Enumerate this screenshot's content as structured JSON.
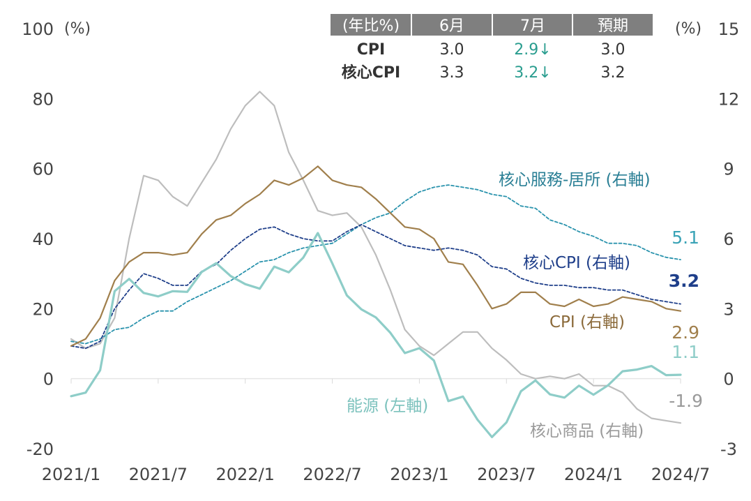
{
  "chart_data": {
    "type": "line",
    "left_axis": {
      "unit": "(%)",
      "range": [
        -20,
        100
      ],
      "ticks": [
        "100",
        "80",
        "60",
        "40",
        "20",
        "0",
        "-20"
      ]
    },
    "right_axis": {
      "unit": "(%)",
      "range": [
        -3,
        15
      ],
      "ticks": [
        "15",
        "12",
        "9",
        "6",
        "3",
        "0",
        "-3"
      ]
    },
    "x_ticks": [
      "2021/1",
      "2021/7",
      "2022/1",
      "2022/7",
      "2023/1",
      "2023/7",
      "2024/1",
      "2024/7"
    ],
    "months": [
      "2021/1",
      "2021/2",
      "2021/3",
      "2021/4",
      "2021/5",
      "2021/6",
      "2021/7",
      "2021/8",
      "2021/9",
      "2021/10",
      "2021/11",
      "2021/12",
      "2022/1",
      "2022/2",
      "2022/3",
      "2022/4",
      "2022/5",
      "2022/6",
      "2022/7",
      "2022/8",
      "2022/9",
      "2022/10",
      "2022/11",
      "2022/12",
      "2023/1",
      "2023/2",
      "2023/3",
      "2023/4",
      "2023/5",
      "2023/6",
      "2023/7",
      "2023/8",
      "2023/9",
      "2023/10",
      "2023/11",
      "2023/12",
      "2024/1",
      "2024/2",
      "2024/3",
      "2024/4",
      "2024/5",
      "2024/6",
      "2024/7"
    ],
    "series": [
      {
        "name": "核心商品 (右軸)",
        "axis": "right",
        "color": "#bdbdbd",
        "style": "solid",
        "values": [
          1.7,
          1.3,
          1.5,
          2.6,
          6.0,
          8.7,
          8.5,
          7.8,
          7.4,
          8.4,
          9.4,
          10.7,
          11.7,
          12.3,
          11.7,
          9.7,
          8.5,
          7.2,
          7.0,
          7.1,
          6.5,
          5.3,
          3.8,
          2.1,
          1.4,
          1.0,
          1.5,
          2.0,
          2.0,
          1.3,
          0.8,
          0.2,
          0.0,
          0.1,
          0.0,
          0.2,
          -0.3,
          -0.3,
          -0.6,
          -1.3,
          -1.7,
          -1.8,
          -1.9
        ]
      },
      {
        "name": "核心服務-居所 (右軸)",
        "axis": "right",
        "color": "#2a93ad",
        "style": "dashed",
        "values": [
          1.6,
          1.5,
          1.7,
          2.1,
          2.2,
          2.6,
          2.9,
          2.9,
          3.3,
          3.6,
          3.9,
          4.2,
          4.6,
          5.0,
          5.1,
          5.4,
          5.6,
          5.7,
          5.8,
          6.2,
          6.6,
          6.9,
          7.1,
          7.6,
          8.0,
          8.2,
          8.3,
          8.2,
          8.1,
          7.9,
          7.8,
          7.4,
          7.3,
          6.8,
          6.6,
          6.3,
          6.1,
          5.8,
          5.8,
          5.7,
          5.4,
          5.2,
          5.1
        ]
      },
      {
        "name": "核心CPI (右軸)",
        "axis": "right",
        "color": "#1f3f8a",
        "style": "dashed",
        "values": [
          1.4,
          1.3,
          1.6,
          3.0,
          3.8,
          4.5,
          4.3,
          4.0,
          4.0,
          4.6,
          4.9,
          5.5,
          6.0,
          6.4,
          6.5,
          6.2,
          6.0,
          5.9,
          5.9,
          6.3,
          6.6,
          6.3,
          6.0,
          5.7,
          5.6,
          5.5,
          5.6,
          5.5,
          5.3,
          4.8,
          4.7,
          4.3,
          4.1,
          4.0,
          4.0,
          3.9,
          3.9,
          3.8,
          3.8,
          3.6,
          3.4,
          3.3,
          3.2
        ]
      },
      {
        "name": "CPI (右軸)",
        "axis": "right",
        "color": "#a07f4c",
        "style": "solid",
        "values": [
          1.4,
          1.7,
          2.6,
          4.2,
          5.0,
          5.4,
          5.4,
          5.3,
          5.4,
          6.2,
          6.8,
          7.0,
          7.5,
          7.9,
          8.5,
          8.3,
          8.6,
          9.1,
          8.5,
          8.3,
          8.2,
          7.7,
          7.1,
          6.5,
          6.4,
          6.0,
          5.0,
          4.9,
          4.0,
          3.0,
          3.2,
          3.7,
          3.7,
          3.2,
          3.1,
          3.4,
          3.1,
          3.2,
          3.5,
          3.4,
          3.3,
          3.0,
          2.9
        ]
      },
      {
        "name": "能源 (左軸)",
        "axis": "left",
        "color": "#8ecdc8",
        "style": "solid",
        "values": [
          -5,
          -4,
          2.4,
          25,
          28.5,
          24.5,
          23.5,
          25,
          24.8,
          30.5,
          33,
          29.3,
          27,
          25.7,
          32,
          30.4,
          34.6,
          41.6,
          32.9,
          23.8,
          19.8,
          17.5,
          13.1,
          7.3,
          8.7,
          5.2,
          -6.4,
          -5.1,
          -11.7,
          -16.7,
          -12.5,
          -3.6,
          -0.5,
          -4.5,
          -5.4,
          -2,
          -4.6,
          -1.9,
          2.1,
          2.6,
          3.6,
          1,
          1.1
        ]
      }
    ],
    "labels": {
      "housing": "核心服務-居所 (右軸)",
      "core_cpi": "核心CPI (右軸)",
      "cpi": "CPI (右軸)",
      "energy": "能源 (左軸)",
      "core_goods": "核心商品 (右軸)"
    },
    "end_values": {
      "housing": "5.1",
      "core_cpi": "3.2",
      "cpi": "2.9",
      "energy": "1.1",
      "core_goods": "-1.9"
    },
    "table": {
      "headers": [
        "(年比%)",
        "6月",
        "7月",
        "預期"
      ],
      "rows": [
        {
          "label": "CPI",
          "june": "3.0",
          "july": "2.9↓",
          "expected": "3.0"
        },
        {
          "label": "核心CPI",
          "june": "3.3",
          "july": "3.2↓",
          "expected": "3.2"
        }
      ]
    }
  }
}
